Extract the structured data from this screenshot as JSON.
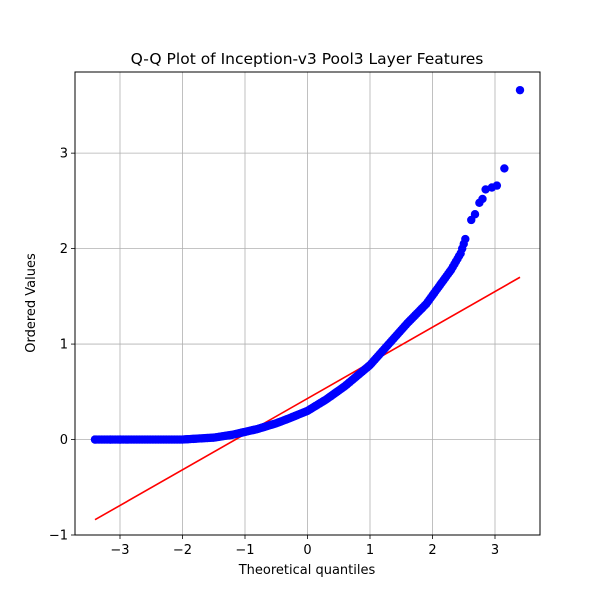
{
  "chart_data": {
    "type": "scatter",
    "title": "Q-Q Plot of Inception-v3 Pool3 Layer Features",
    "xlabel": "Theoretical quantiles",
    "ylabel": "Ordered Values",
    "xlim": [
      -3.72,
      3.72
    ],
    "ylim": [
      -1.0,
      3.85
    ],
    "xticks": [
      -3,
      -2,
      -1,
      0,
      1,
      2,
      3
    ],
    "yticks": [
      -1,
      0,
      1,
      2,
      3
    ],
    "xtick_labels": [
      "−3",
      "−2",
      "−1",
      "0",
      "1",
      "2",
      "3"
    ],
    "ytick_labels": [
      "−1",
      "0",
      "1",
      "2",
      "3"
    ],
    "grid": true,
    "marker_color": "#0000ff",
    "line_color": "#ff0000",
    "quantile_curve": [
      [
        -3.4,
        0.0
      ],
      [
        -2.0,
        0.0
      ],
      [
        -1.5,
        0.02
      ],
      [
        -1.2,
        0.05
      ],
      [
        -1.0,
        0.08
      ],
      [
        -0.8,
        0.11
      ],
      [
        -0.5,
        0.17
      ],
      [
        -0.3,
        0.22
      ],
      [
        0.0,
        0.3
      ],
      [
        0.3,
        0.42
      ],
      [
        0.6,
        0.56
      ],
      [
        1.0,
        0.78
      ],
      [
        1.3,
        1.0
      ],
      [
        1.6,
        1.22
      ],
      [
        1.9,
        1.42
      ],
      [
        2.1,
        1.6
      ],
      [
        2.3,
        1.78
      ],
      [
        2.45,
        1.95
      ],
      [
        2.55,
        2.15
      ]
    ],
    "tail_points": [
      [
        -3.4,
        0.0
      ],
      [
        -3.15,
        0.0
      ],
      [
        -3.0,
        0.0
      ],
      [
        2.62,
        2.3
      ],
      [
        2.68,
        2.36
      ],
      [
        2.75,
        2.48
      ],
      [
        2.8,
        2.52
      ],
      [
        2.85,
        2.62
      ],
      [
        2.95,
        2.64
      ],
      [
        3.03,
        2.66
      ],
      [
        3.15,
        2.84
      ],
      [
        3.4,
        3.66
      ]
    ],
    "fit_line": {
      "x": [
        -3.4,
        3.4
      ],
      "y": [
        -0.84,
        1.7
      ]
    }
  }
}
